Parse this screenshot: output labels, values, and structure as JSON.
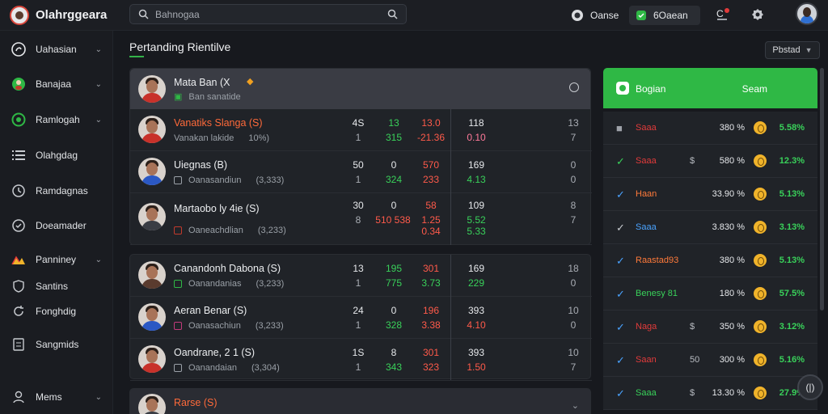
{
  "app": {
    "brand": "Olahrggeara"
  },
  "search": {
    "placeholder": "Bahnogaa"
  },
  "topbar": {
    "status_label": "Oanse",
    "balance_label": "6Oaean",
    "notif_badge": "C"
  },
  "sidebar": {
    "items": [
      {
        "label": "Uahasian",
        "icon": "logo-icon",
        "chevron": true
      },
      {
        "label": "Banajaa",
        "icon": "user-icon",
        "chevron": true
      },
      {
        "label": "Ramlogah",
        "icon": "target-icon",
        "chevron": true
      },
      {
        "label": "Olahgdag",
        "icon": "list-icon",
        "chevron": false
      },
      {
        "label": "Ramdagnas",
        "icon": "clock-icon",
        "chevron": false
      },
      {
        "label": "Doeamader",
        "icon": "check-circle-icon",
        "chevron": false
      },
      {
        "label": "Panniney",
        "icon": "chart-icon",
        "chevron": true
      },
      {
        "label": "Santins",
        "icon": "shield-icon",
        "chevron": false
      },
      {
        "label": "Fonghdig",
        "icon": "refresh-icon",
        "chevron": false
      },
      {
        "label": "Sangmids",
        "icon": "document-icon",
        "chevron": false
      },
      {
        "label": "Mems",
        "icon": "person-icon",
        "chevron": true
      }
    ]
  },
  "main": {
    "title": "Pertanding Rientilve",
    "filter_label": "Pbstad",
    "card1": {
      "header": {
        "name": "Mata Ban (X",
        "sub": "Ban sanatide"
      },
      "rows": [
        {
          "name": "Vanatiks Slanga (S)",
          "sub": "Vanakan lakide",
          "meta": "10%)",
          "cols": [
            [
              "4S",
              "1"
            ],
            [
              "13",
              "315"
            ],
            [
              "13.0",
              "-21.36"
            ],
            [
              "118",
              "0.10"
            ],
            [
              "13",
              "7"
            ]
          ]
        },
        {
          "name": "Uiegnas (B)",
          "sub": "Oanasandiun",
          "meta": "(3,333)",
          "cols": [
            [
              "50",
              "1"
            ],
            [
              "0",
              "324"
            ],
            [
              "570",
              "233"
            ],
            [
              "169",
              "4.13"
            ],
            [
              "0",
              "0"
            ]
          ]
        },
        {
          "name": "Martaobo ly 4ie (S)",
          "sub": "Oaneachdlian",
          "meta": "(3,233)",
          "cols": [
            [
              "30",
              "8"
            ],
            [
              "0",
              "510 538"
            ],
            [
              "58",
              "1.25 0.34"
            ],
            [
              "109",
              "5.52 5.33"
            ],
            [
              "8",
              "7"
            ]
          ]
        }
      ]
    },
    "card2": {
      "rows": [
        {
          "name": "Canandonh Dabona (S)",
          "sub": "Oanandanias",
          "meta": "(3,233)",
          "cols": [
            [
              "13",
              "1"
            ],
            [
              "195",
              "775"
            ],
            [
              "301",
              "3.73"
            ],
            [
              "169",
              "229"
            ],
            [
              "18",
              "0"
            ]
          ]
        },
        {
          "name": "Aeran Benar (S)",
          "sub": "Oanasachiun",
          "meta": "(3,233)",
          "cols": [
            [
              "24",
              "1"
            ],
            [
              "0",
              "328"
            ],
            [
              "196",
              "3.38"
            ],
            [
              "393",
              "4.10"
            ],
            [
              "10",
              "0"
            ]
          ]
        },
        {
          "name": "Oandrane, 2 1 (S)",
          "sub": "Oanandaian",
          "meta": "(3,304)",
          "cols": [
            [
              "1S",
              "1"
            ],
            [
              "8",
              "343"
            ],
            [
              "301",
              "323"
            ],
            [
              "393",
              "1.50"
            ],
            [
              "10",
              "7"
            ]
          ]
        }
      ]
    },
    "card3": {
      "name": "Rarse (S)"
    }
  },
  "rpanel": {
    "header_label": "Bogian",
    "header_action": "Seam",
    "rows": [
      {
        "check": "■",
        "tag": "Saaa",
        "cur": "",
        "pct": "380 %",
        "val": "5.58%"
      },
      {
        "check": "✓",
        "tag": "Saaa",
        "cur": "$",
        "pct": "580 %",
        "val": "12.3%"
      },
      {
        "check": "✓",
        "tag": "Haan",
        "cur": "",
        "pct": "33.90 %",
        "val": "5.13%"
      },
      {
        "check": "✓",
        "tag": "Saaa",
        "cur": "",
        "pct": "3.830 %",
        "val": "3.13%"
      },
      {
        "check": "✓",
        "tag": "Raastad93",
        "cur": "",
        "pct": "380 %",
        "val": "5.13%"
      },
      {
        "check": "✓",
        "tag": "Benesy 81",
        "cur": "",
        "pct": "180 %",
        "val": "57.5%"
      },
      {
        "check": "✓",
        "tag": "Naga",
        "cur": "$",
        "pct": "350 %",
        "val": "3.12%"
      },
      {
        "check": "✓",
        "tag": "Saan",
        "cur": "50",
        "pct": "300 %",
        "val": "5.16%"
      },
      {
        "check": "✓",
        "tag": "Saaa",
        "cur": "$",
        "pct": "13.30 %",
        "val": "27.9%"
      }
    ]
  },
  "colors": {
    "accent": "#2fb845",
    "bg": "#17191e",
    "panel": "#202328",
    "red": "#ff5a4a",
    "green": "#39d15a"
  }
}
